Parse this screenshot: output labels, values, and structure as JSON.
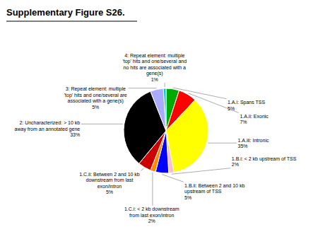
{
  "chart_data": {
    "type": "pie",
    "title": "Supplementary Figure S26.",
    "categories": [
      "1.A.i: Spans TSS",
      "1.A.ii: Exonic",
      "1.A.iii: Intronic",
      "1.B.i: < 2 kb upstream of TSS",
      "1.B.ii: Between 2 and 10 kb\nupstream of TSS",
      "1.C.i: < 2 kb downstream\nfrom last exon/intron",
      "1.C.ii: Between 2 and 10 kb\ndownstream from last\nexon/intron",
      "2: Uncharacterized: > 10 kb\naway from an annotated gene",
      "3: Repeat element: multiple\n'top' hits and one/several are\nassociated with a gene(s)",
      "4: Repeat element: multiple\n'top' hits and one/several and\nno hits are associated with a\ngene(s)"
    ],
    "values": [
      5,
      7,
      35,
      2,
      5,
      2,
      5,
      33,
      5,
      1
    ],
    "value_labels": [
      "5%",
      "7%",
      "35%",
      "2%",
      "5%",
      "2%",
      "5%",
      "33%",
      "5%",
      "1%"
    ],
    "colors": [
      "#00aa00",
      "#ff0000",
      "#ffff00",
      "#ffbbcc",
      "#0000ff",
      "#ff8800",
      "#cc0000",
      "#000000",
      "#aaaaff",
      "#00cccc"
    ],
    "data_labels": true
  }
}
